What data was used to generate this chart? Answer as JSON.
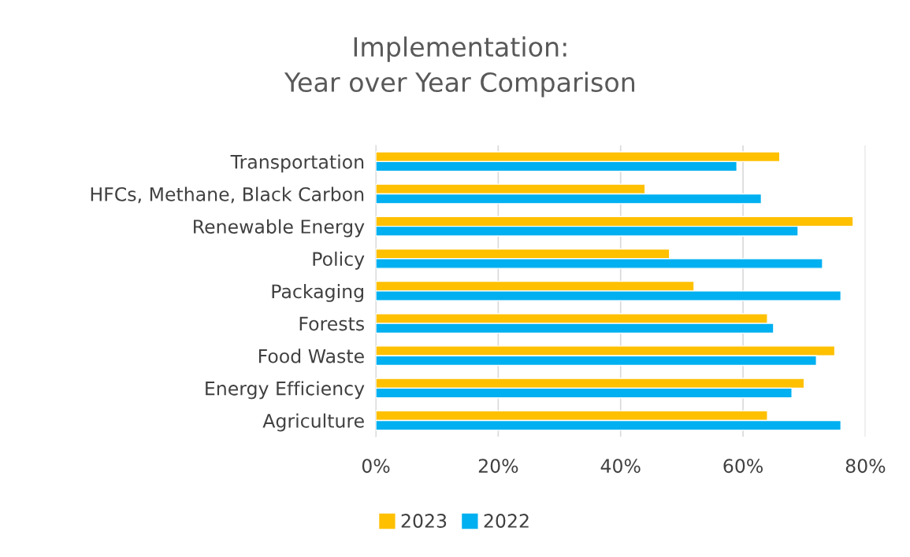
{
  "chart_data": {
    "type": "bar",
    "orientation": "horizontal",
    "title": "Implementation:\nYear over Year Comparison",
    "categories": [
      "Transportation",
      "HFCs, Methane, Black Carbon",
      "Renewable Energy",
      "Policy",
      "Packaging",
      "Forests",
      "Food Waste",
      "Energy Efficiency",
      "Agriculture"
    ],
    "series": [
      {
        "name": "2023",
        "color": "#ffc000",
        "values": [
          66,
          44,
          78,
          48,
          52,
          64,
          75,
          70,
          64
        ]
      },
      {
        "name": "2022",
        "color": "#00b0f0",
        "values": [
          59,
          63,
          69,
          73,
          76,
          65,
          72,
          68,
          76
        ]
      }
    ],
    "xlim": [
      0,
      80
    ],
    "xticks": [
      {
        "value": 0,
        "label": "0%"
      },
      {
        "value": 20,
        "label": "20%"
      },
      {
        "value": 40,
        "label": "40%"
      },
      {
        "value": 60,
        "label": "60%"
      },
      {
        "value": 80,
        "label": "80%"
      }
    ],
    "grid": "x",
    "legend": "bottom"
  }
}
